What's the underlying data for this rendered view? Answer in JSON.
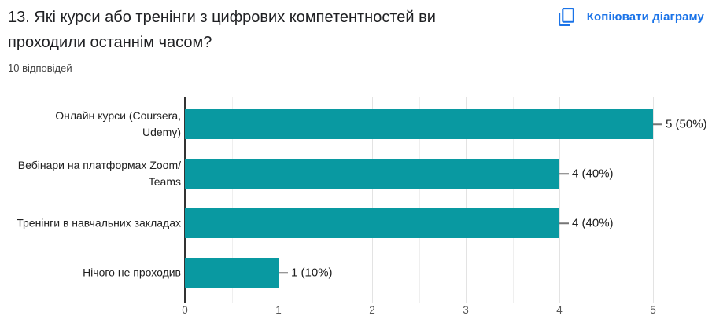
{
  "header": {
    "title": "13. Які курси або тренінги з цифрових компетентностей ви\nпроходили останнім часом?",
    "responses_count": "10 відповідей"
  },
  "toolbar": {
    "copy_button_label": "Копіювати діаграму",
    "copy_icon": "content-copy-icon"
  },
  "chart_data": {
    "type": "bar",
    "orientation": "horizontal",
    "title": "13. Які курси або тренінги з цифрових компетентностей ви проходили останнім часом?",
    "subtitle": "10 відповідей",
    "categories": [
      "Онлайн курси (Coursera, Udemy)",
      "Вебінари на платформах Zoom/Teams",
      "Тренінги в навчальних закладах",
      "Нічого не проходив"
    ],
    "category_display": [
      "Онлайн курси (Coursera,\nUdemy)",
      "Вебінари на платформах Zoom/\nTeams",
      "Тренінги в навчальних закладах",
      "Нічого не проходив"
    ],
    "values": [
      5,
      4,
      4,
      1
    ],
    "percentages": [
      50,
      40,
      40,
      10
    ],
    "value_labels": [
      "5 (50%)",
      "4 (40%)",
      "4 (40%)",
      "1 (10%)"
    ],
    "xlim": [
      0,
      5
    ],
    "x_ticks": [
      "0",
      "1",
      "2",
      "3",
      "4",
      "5"
    ],
    "gridline_step": 0.5,
    "legend_position": "none",
    "bar_color": "#0999a1"
  },
  "colors": {
    "bar_teal": "#0999a1",
    "accent_blue": "#1a73e8",
    "title_text": "#202124",
    "label_text": "#212121",
    "tick_text": "#565656",
    "gridline_major": "#e3e3e3",
    "gridline_minor": "#efefef",
    "axis_line": "#333333",
    "background": "#ffffff"
  }
}
